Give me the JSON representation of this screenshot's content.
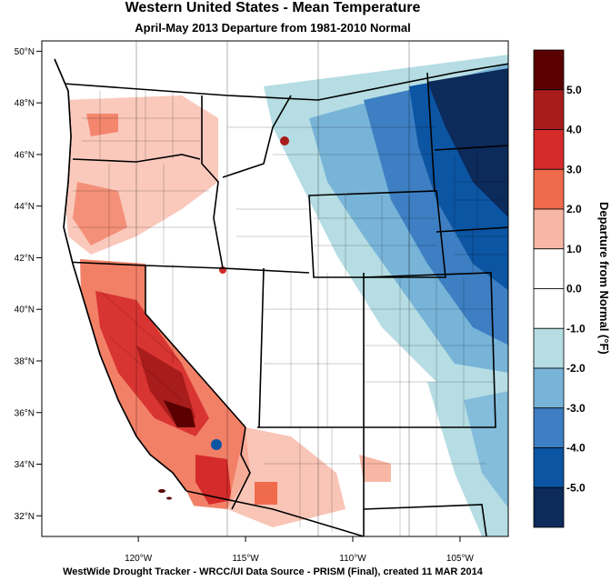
{
  "title": "Western United States - Mean Temperature",
  "subtitle": "April-May 2013  Departure from 1981-2010 Normal",
  "footer": "WestWide Drought Tracker - WRCC/UI  Data Source - PRISM (Final), created 11 MAR 2014",
  "map": {
    "lat_ticks": [
      {
        "value": 50,
        "label": "50°N"
      },
      {
        "value": 48,
        "label": "48°N"
      },
      {
        "value": 46,
        "label": "46°N"
      },
      {
        "value": 44,
        "label": "44°N"
      },
      {
        "value": 42,
        "label": "42°N"
      },
      {
        "value": 40,
        "label": "40°N"
      },
      {
        "value": 38,
        "label": "38°N"
      },
      {
        "value": 36,
        "label": "36°N"
      },
      {
        "value": 34,
        "label": "34°N"
      },
      {
        "value": 32,
        "label": "32°N"
      }
    ],
    "lon_ticks": [
      {
        "value": -120,
        "label": "120°W"
      },
      {
        "value": -115,
        "label": "115°W"
      },
      {
        "value": -110,
        "label": "110°W"
      },
      {
        "value": -105,
        "label": "105°W"
      }
    ],
    "lat_range": [
      31.2,
      50.4
    ],
    "lon_range": [
      -124.5,
      -102.75
    ]
  },
  "colorbar": {
    "title": "Departure from Normal (°F)",
    "bins": [
      {
        "color": "#5a0000",
        "label": "5.0"
      },
      {
        "color": "#a81c1c",
        "label": "4.0"
      },
      {
        "color": "#d52b2b",
        "label": "3.0"
      },
      {
        "color": "#f06a4c",
        "label": "2.0"
      },
      {
        "color": "#f8b7a5",
        "label": "1.0"
      },
      {
        "color": "#ffffff",
        "label": "0.0"
      },
      {
        "color": "#ffffff",
        "label": "-1.0"
      },
      {
        "color": "#b5dde3",
        "label": "-2.0"
      },
      {
        "color": "#78b4d8",
        "label": "-3.0"
      },
      {
        "color": "#3d7fc2",
        "label": "-4.0"
      },
      {
        "color": "#0b55a3",
        "label": "-5.0"
      },
      {
        "color": "#0c2a5a",
        "label": ""
      }
    ]
  }
}
